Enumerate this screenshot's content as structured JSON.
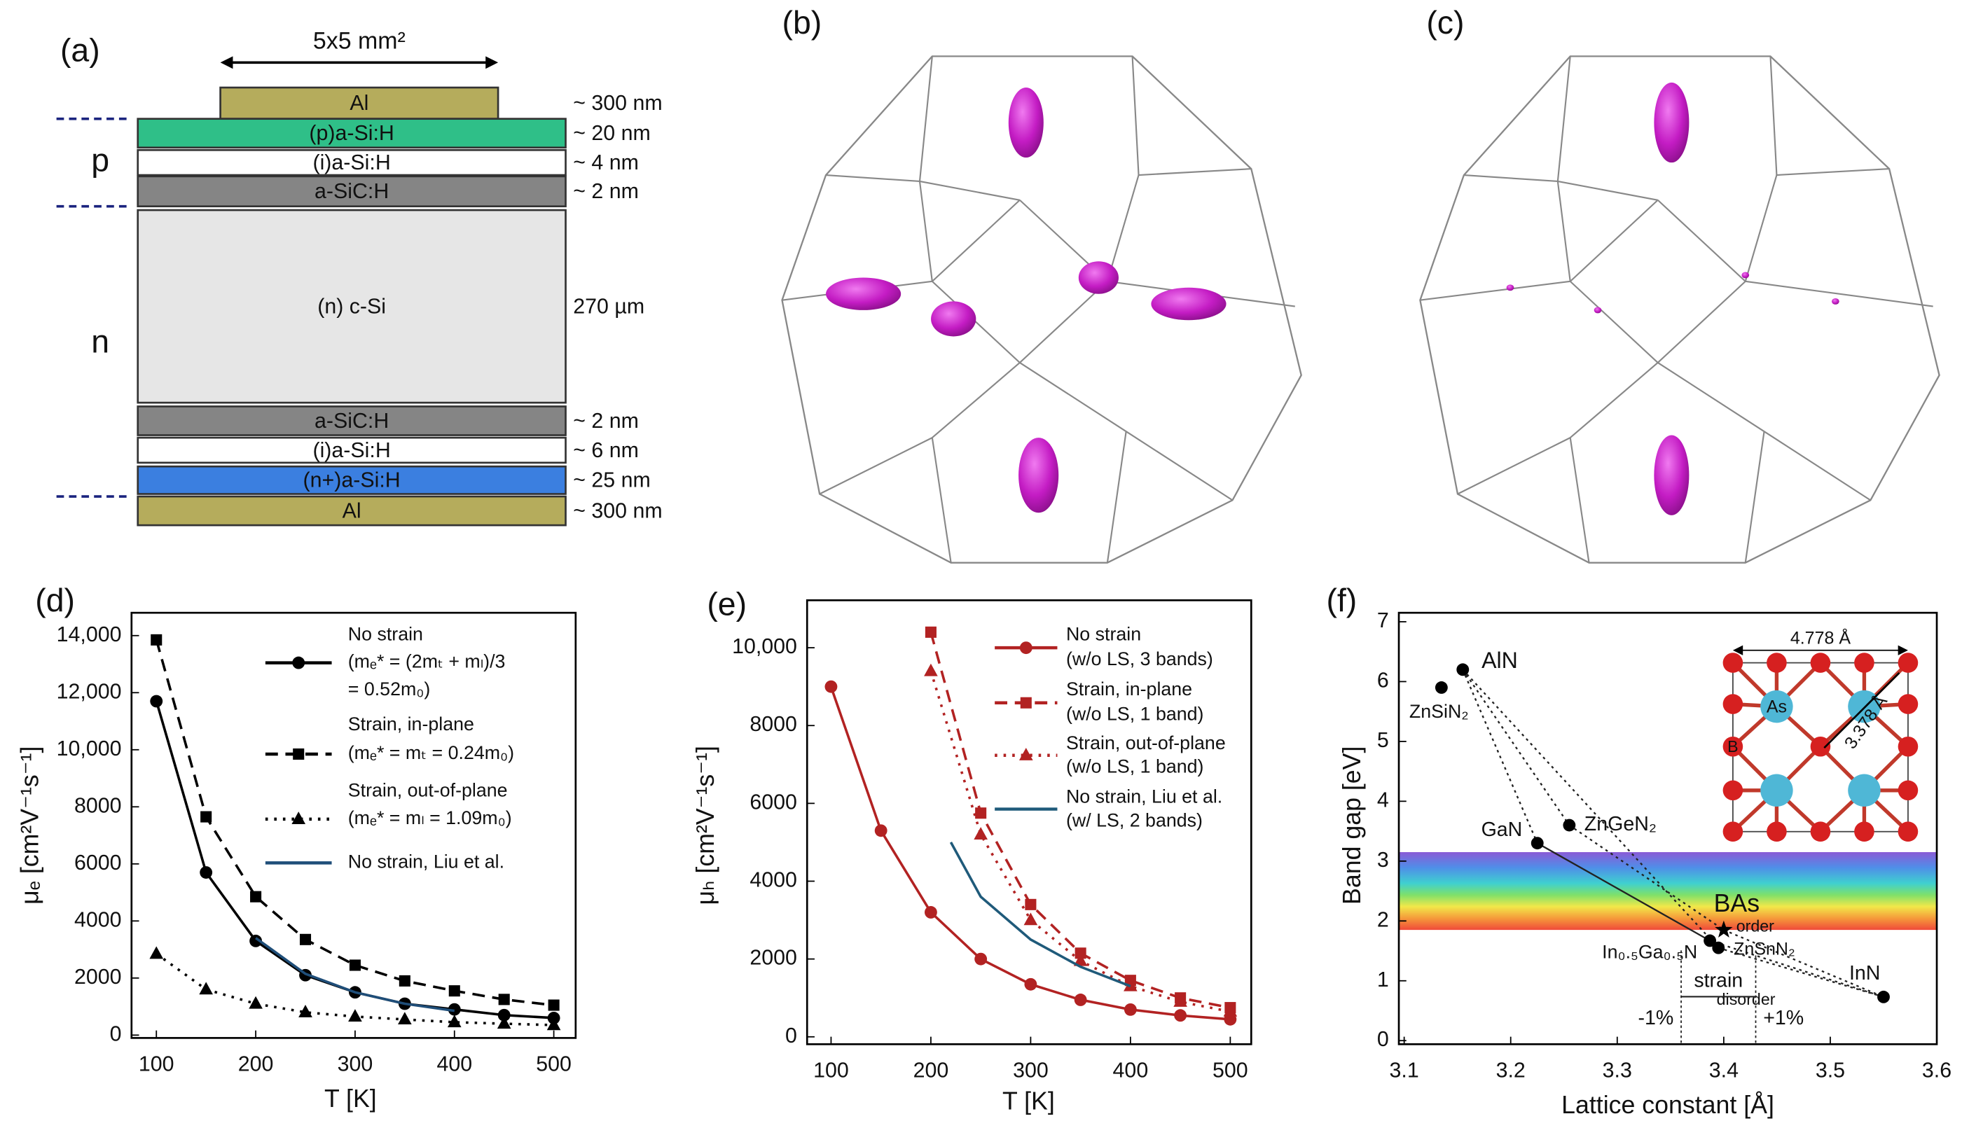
{
  "panel_a": {
    "label": "(a)",
    "size": "5x5 mm²",
    "regions": [
      "p",
      "n"
    ],
    "layers": [
      {
        "name": "Al",
        "thickness": "~ 300 nm",
        "color": "#b5ac5c"
      },
      {
        "name": "(p)a-Si:H",
        "thickness": "~ 20 nm",
        "color": "#2fbf88"
      },
      {
        "name": "(i)a-Si:H",
        "thickness": "~ 4 nm",
        "color": "#ffffff"
      },
      {
        "name": "a-SiC:H",
        "thickness": "~ 2 nm",
        "color": "#858585"
      },
      {
        "name": "(n) c-Si",
        "thickness": "270 µm",
        "color": "#e6e6e6"
      },
      {
        "name": "a-SiC:H",
        "thickness": "~ 2 nm",
        "color": "#858585"
      },
      {
        "name": "(i)a-Si:H",
        "thickness": "~ 6 nm",
        "color": "#ffffff"
      },
      {
        "name": "(n+)a-Si:H",
        "thickness": "~ 25 nm",
        "color": "#3b7fe0"
      },
      {
        "name": "Al",
        "thickness": "~ 300 nm",
        "color": "#b5ac5c"
      }
    ]
  },
  "panel_b": {
    "label": "(b)"
  },
  "panel_c": {
    "label": "(c)"
  },
  "chart_data": [
    {
      "type": "line",
      "label": "(d)",
      "xlabel": "T [K]",
      "ylabel": "μₑ [cm²V⁻¹s⁻¹]",
      "xlim": [
        75,
        522
      ],
      "xticks": [
        100,
        200,
        300,
        400,
        500
      ],
      "ylim": [
        -100,
        14800
      ],
      "yticks": [
        0,
        2000,
        4000,
        6000,
        8000,
        {
          "value": 10000,
          "label": "10,000"
        },
        {
          "value": 12000,
          "label": "12,000"
        },
        {
          "value": 14000,
          "label": "14,000"
        }
      ],
      "series": [
        {
          "name": "No strain",
          "notes": [
            "(mₑ* = (2mₜ + mₗ)/3",
            "= 0.52m₀)"
          ],
          "color": "#000000",
          "dash": "solid",
          "marker": "circle",
          "x": [
            100,
            150,
            200,
            250,
            300,
            350,
            400,
            450,
            500
          ],
          "values": [
            11700,
            5700,
            3300,
            2100,
            1500,
            1100,
            900,
            700,
            600
          ]
        },
        {
          "name": "Strain, in-plane",
          "notes": [
            "(mₑ* = mₜ = 0.24m₀)"
          ],
          "color": "#000000",
          "dash": "dashed",
          "marker": "square",
          "x": [
            100,
            150,
            200,
            250,
            300,
            350,
            400,
            450,
            500
          ],
          "values": [
            13850,
            7650,
            4850,
            3350,
            2450,
            1900,
            1550,
            1250,
            1050
          ]
        },
        {
          "name": "Strain, out-of-plane",
          "notes": [
            "(mₑ* = mₗ = 1.09m₀)"
          ],
          "color": "#000000",
          "dash": "dotted",
          "marker": "triangle",
          "x": [
            100,
            150,
            200,
            250,
            300,
            350,
            400,
            450,
            500
          ],
          "values": [
            2850,
            1600,
            1100,
            800,
            650,
            550,
            450,
            400,
            350
          ]
        },
        {
          "name": "No strain, Liu et al.",
          "color": "#1f4e79",
          "dash": "solid",
          "marker": "none",
          "x": [
            200,
            250,
            300,
            350,
            400
          ],
          "values": [
            3400,
            2150,
            1500,
            1100,
            850
          ]
        }
      ]
    },
    {
      "type": "line",
      "label": "(e)",
      "xlabel": "T [K]",
      "ylabel": "μₕ [cm²V⁻¹s⁻¹]",
      "xlim": [
        76,
        521
      ],
      "xticks": [
        100,
        200,
        300,
        400,
        500
      ],
      "ylim": [
        -190,
        11220
      ],
      "yticks": [
        0,
        2000,
        4000,
        6000,
        8000,
        {
          "value": 10000,
          "label": "10,000"
        }
      ],
      "series": [
        {
          "name": "No strain",
          "notes": [
            "(w/o LS, 3 bands)"
          ],
          "color": "#b22222",
          "dash": "solid",
          "marker": "circle",
          "x": [
            100,
            150,
            200,
            250,
            300,
            350,
            400,
            450,
            500
          ],
          "values": [
            9000,
            5300,
            3200,
            2000,
            1350,
            950,
            700,
            550,
            450
          ]
        },
        {
          "name": "Strain, in-plane",
          "notes": [
            "(w/o LS, 1 band)"
          ],
          "color": "#b22222",
          "dash": "dashed",
          "marker": "square",
          "x": [
            200,
            250,
            300,
            350,
            400,
            450,
            500
          ],
          "values": [
            10400,
            5750,
            3400,
            2150,
            1450,
            1000,
            750
          ]
        },
        {
          "name": "Strain, out-of-plane",
          "notes": [
            "(w/o LS, 1 band)"
          ],
          "color": "#b22222",
          "dash": "dotted",
          "marker": "triangle",
          "x": [
            200,
            250,
            300,
            350,
            400,
            450,
            500
          ],
          "values": [
            9400,
            5200,
            3000,
            1950,
            1300,
            900,
            650
          ]
        },
        {
          "name": "No strain, Liu et al.",
          "notes": [
            "(w/ LS, 2 bands)"
          ],
          "color": "#1f5a7a",
          "dash": "solid",
          "marker": "none",
          "x": [
            220,
            250,
            300,
            350,
            400
          ],
          "values": [
            5000,
            3600,
            2500,
            1800,
            1300
          ]
        }
      ]
    },
    {
      "type": "scatter",
      "label": "(f)",
      "xlabel": "Lattice constant [Å]",
      "ylabel": "Band gap [eV]",
      "xlim": [
        3.095,
        3.6
      ],
      "xticks": [
        3.1,
        3.2,
        3.3,
        3.4,
        3.5,
        3.6
      ],
      "ylim": [
        -0.06,
        7.15
      ],
      "yticks": [
        0,
        1,
        2,
        3,
        4,
        5,
        6,
        7
      ],
      "band": [
        1.85,
        3.15
      ],
      "points": [
        {
          "name": "AlN",
          "x": 3.155,
          "y": 6.2,
          "marker": "circle",
          "label_color": "#000000"
        },
        {
          "name": "ZnSiN₂",
          "x": 3.135,
          "y": 5.9,
          "marker": "circle",
          "label_color": "#6a3d7a"
        },
        {
          "name": "GaN",
          "x": 3.225,
          "y": 3.3,
          "marker": "circle",
          "label_color": "#000000"
        },
        {
          "name": "ZnGeN₂",
          "x": 3.255,
          "y": 3.6,
          "marker": "circle",
          "label_color": "#6a3d7a"
        },
        {
          "name": "BAs",
          "x": 3.4,
          "y": 1.85,
          "marker": "star",
          "label_color": "#000000"
        },
        {
          "name": "In₀.₅Ga₀.₅N",
          "x": 3.387,
          "y": 1.67,
          "marker": "circle",
          "label_color": "#000000"
        },
        {
          "name": "disorder",
          "x": 3.395,
          "y": 1.55,
          "marker": "circle",
          "label_color": "#6a3d7a"
        },
        {
          "name": "InN",
          "x": 3.55,
          "y": 0.73,
          "marker": "circle",
          "label_color": "#000000"
        }
      ],
      "annotations": [
        "order",
        "ZnSnN₂"
      ],
      "strain": {
        "label": "strain",
        "range": [
          3.36,
          3.43
        ],
        "left": "-1%",
        "right": "+1%"
      },
      "inset": {
        "a": "4.778 Å",
        "c": "3.378 Å",
        "atoms": [
          "As",
          "B"
        ]
      }
    }
  ]
}
